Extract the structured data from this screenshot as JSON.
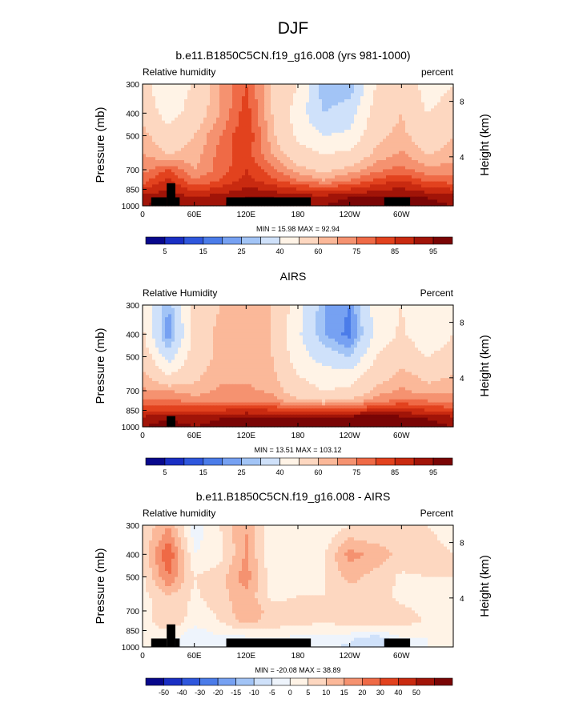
{
  "figure": {
    "title": "DJF"
  },
  "panel_common": {
    "x_ticks": [
      "0",
      "60E",
      "120E",
      "180",
      "120W",
      "60W"
    ],
    "x_tick_values": [
      0,
      60,
      120,
      180,
      240,
      300
    ],
    "y_ticks": [
      "300",
      "400",
      "500",
      "700",
      "850",
      "1000"
    ],
    "y_tick_values": [
      300,
      400,
      500,
      700,
      850,
      1000
    ],
    "right_ticks": [
      "8",
      "4"
    ],
    "right_tick_values": [
      8,
      4
    ],
    "ylabel": "Pressure (mb)",
    "right_label": "Height (km)"
  },
  "palettes": {
    "abs": [
      "#08088c",
      "#1a2fc4",
      "#2f57dd",
      "#4b7ce9",
      "#76a1f2",
      "#a2c4f6",
      "#cfe1fa",
      "#fff3e6",
      "#fdd7c0",
      "#fbb899",
      "#f59270",
      "#ef6a46",
      "#e2421e",
      "#c92a10",
      "#a11408",
      "#7a0505"
    ],
    "diff": [
      "#08088c",
      "#1a2fc4",
      "#2f57dd",
      "#4b7ce9",
      "#76a1f2",
      "#a2c4f6",
      "#cfe1fa",
      "#eef4fc",
      "#fff3e6",
      "#fdd7c0",
      "#fbb899",
      "#f59270",
      "#ef6a46",
      "#e2421e",
      "#c92a10",
      "#a11408",
      "#7a0505"
    ]
  },
  "chart_data": [
    {
      "type": "heatmap",
      "title": "b.e11.B1850C5CN.f19_g16.008 (yrs 981-1000)",
      "left_label": "Relative humidity",
      "right_unit": "percent",
      "stats": "MIN = 15.98   MAX = 92.94",
      "min": 15.98,
      "max": 92.94,
      "colorbar_labels": [
        "5",
        "15",
        "25",
        "40",
        "60",
        "75",
        "85",
        "95"
      ],
      "x": [
        0,
        30,
        60,
        90,
        120,
        150,
        180,
        210,
        240,
        270,
        300,
        330,
        360
      ],
      "y": [
        300,
        400,
        500,
        600,
        700,
        775,
        850,
        925,
        1000
      ],
      "z": [
        [
          55,
          40,
          52,
          65,
          75,
          60,
          50,
          25,
          25,
          50,
          60,
          45,
          50
        ],
        [
          58,
          45,
          55,
          65,
          78,
          60,
          45,
          30,
          35,
          55,
          60,
          50,
          55
        ],
        [
          62,
          55,
          60,
          70,
          80,
          62,
          48,
          40,
          42,
          58,
          62,
          55,
          60
        ],
        [
          65,
          60,
          62,
          72,
          78,
          65,
          55,
          50,
          52,
          62,
          66,
          60,
          62
        ],
        [
          68,
          75,
          65,
          72,
          80,
          72,
          62,
          58,
          62,
          68,
          72,
          66,
          68
        ],
        [
          72,
          82,
          70,
          75,
          82,
          76,
          70,
          65,
          70,
          76,
          80,
          74,
          72
        ],
        [
          80,
          85,
          78,
          82,
          86,
          84,
          80,
          78,
          80,
          84,
          86,
          82,
          80
        ],
        [
          88,
          90,
          86,
          88,
          90,
          90,
          88,
          88,
          90,
          90,
          92,
          90,
          88
        ],
        [
          90,
          92,
          88,
          90,
          92,
          92,
          90,
          90,
          92,
          92,
          92,
          92,
          90
        ]
      ]
    },
    {
      "type": "heatmap",
      "title": "AIRS",
      "left_label": "Relative Humidity",
      "right_unit": "Percent",
      "stats": "MIN = 13.51   MAX = 103.12",
      "min": 13.51,
      "max": 103.12,
      "colorbar_labels": [
        "5",
        "15",
        "25",
        "40",
        "60",
        "75",
        "85",
        "95"
      ],
      "x": [
        0,
        30,
        60,
        90,
        120,
        150,
        180,
        210,
        240,
        270,
        300,
        330,
        360
      ],
      "y": [
        300,
        400,
        500,
        600,
        700,
        775,
        850,
        925,
        1000
      ],
      "z": [
        [
          50,
          25,
          55,
          60,
          60,
          60,
          45,
          25,
          20,
          45,
          50,
          40,
          48
        ],
        [
          52,
          20,
          55,
          62,
          62,
          60,
          42,
          25,
          18,
          42,
          52,
          42,
          50
        ],
        [
          58,
          35,
          55,
          62,
          62,
          60,
          45,
          35,
          30,
          50,
          58,
          50,
          55
        ],
        [
          62,
          50,
          58,
          64,
          64,
          62,
          50,
          45,
          45,
          55,
          62,
          58,
          60
        ],
        [
          66,
          65,
          62,
          66,
          66,
          64,
          55,
          50,
          52,
          62,
          66,
          62,
          64
        ],
        [
          70,
          72,
          68,
          70,
          70,
          68,
          62,
          60,
          62,
          68,
          72,
          70,
          68
        ],
        [
          78,
          80,
          80,
          80,
          82,
          80,
          78,
          76,
          78,
          82,
          84,
          80,
          78
        ],
        [
          88,
          90,
          88,
          90,
          92,
          90,
          90,
          90,
          95,
          100,
          92,
          90,
          88
        ],
        [
          90,
          92,
          90,
          92,
          92,
          92,
          92,
          94,
          98,
          100,
          94,
          92,
          90
        ]
      ]
    },
    {
      "type": "heatmap",
      "title": "b.e11.B1850C5CN.f19_g16.008 - AIRS",
      "left_label": "Relative humidity",
      "right_unit": "Percent",
      "stats": "MIN = -20.08   MAX = 38.89",
      "min": -20.08,
      "max": 38.89,
      "colorbar_labels": [
        "-50",
        "-40",
        "-30",
        "-20",
        "-15",
        "-10",
        "-5",
        "0",
        "5",
        "10",
        "15",
        "20",
        "30",
        "40",
        "50"
      ],
      "x": [
        0,
        30,
        60,
        90,
        120,
        150,
        180,
        210,
        240,
        270,
        300,
        330,
        360
      ],
      "y": [
        300,
        400,
        500,
        600,
        700,
        775,
        850,
        925,
        1000
      ],
      "z": [
        [
          5,
          15,
          -3,
          5,
          15,
          0,
          5,
          0,
          5,
          5,
          10,
          5,
          2
        ],
        [
          6,
          25,
          0,
          3,
          16,
          0,
          3,
          5,
          17,
          13,
          8,
          8,
          5
        ],
        [
          4,
          20,
          5,
          8,
          18,
          2,
          3,
          5,
          12,
          8,
          4,
          5,
          5
        ],
        [
          3,
          10,
          4,
          8,
          14,
          3,
          5,
          5,
          7,
          7,
          4,
          2,
          2
        ],
        [
          2,
          10,
          3,
          6,
          14,
          8,
          7,
          8,
          10,
          6,
          6,
          4,
          4
        ],
        [
          2,
          10,
          2,
          5,
          12,
          8,
          8,
          5,
          8,
          8,
          8,
          4,
          4
        ],
        [
          2,
          5,
          -2,
          2,
          4,
          4,
          2,
          2,
          2,
          2,
          2,
          2,
          2
        ],
        [
          0,
          0,
          -2,
          -2,
          -2,
          0,
          -2,
          -2,
          -4,
          -10,
          0,
          0,
          0
        ],
        [
          0,
          0,
          -2,
          -2,
          -2,
          0,
          -2,
          -4,
          -6,
          -10,
          -2,
          0,
          0
        ]
      ]
    }
  ]
}
